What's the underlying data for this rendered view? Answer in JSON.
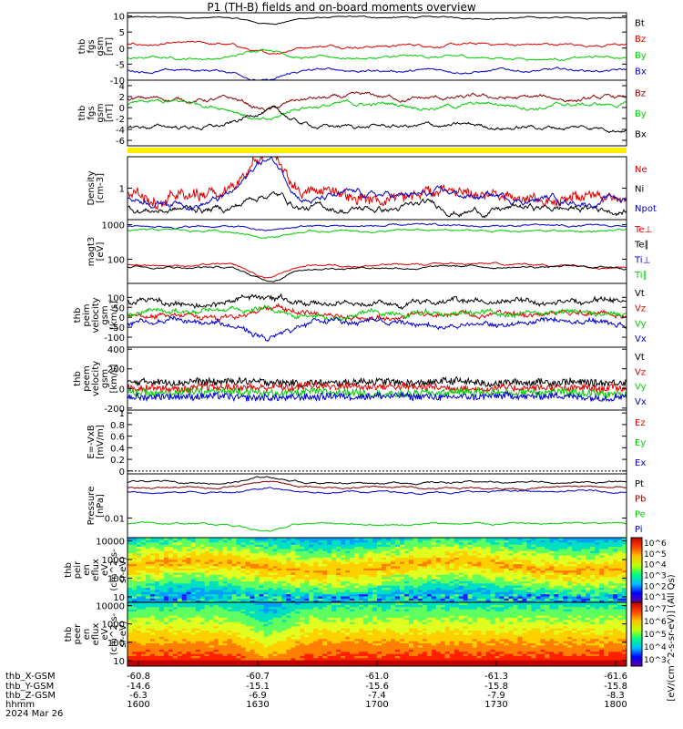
{
  "title": "P1 (TH-B) fields and on-board moments overview",
  "colors": {
    "black": "#000000",
    "red": "#e00000",
    "green": "#00cc00",
    "blue": "#0000cc",
    "darkred": "#8b0000",
    "yellow": "#ffee00"
  },
  "chart_data": [
    {
      "type": "line",
      "panel": "fgs-gsm",
      "ylabel": [
        "thb",
        "fgs",
        "gsm",
        "[nT]"
      ],
      "ylim": [
        -10,
        11
      ],
      "yticks": [
        10,
        5,
        0,
        -5,
        -10
      ],
      "series": [
        {
          "name": "Bt",
          "color": "black",
          "base": 9.5,
          "amp": 0.8
        },
        {
          "name": "Bz",
          "color": "red",
          "base": 1.0,
          "amp": 1.5
        },
        {
          "name": "By",
          "color": "green",
          "base": -3.0,
          "amp": 1.5
        },
        {
          "name": "Bx",
          "color": "blue",
          "base": -7.0,
          "amp": 1.5
        }
      ]
    },
    {
      "type": "line",
      "panel": "fgs-gse",
      "ylabel": [
        "thb",
        "fgs",
        "gsm",
        "[nT]"
      ],
      "ylim": [
        -7,
        5
      ],
      "yticks": [
        4,
        2,
        0,
        -2,
        -4,
        -6
      ],
      "series": [
        {
          "name": "Bz",
          "color": "darkred",
          "base": 1.5,
          "amp": 1.5
        },
        {
          "name": "By",
          "color": "green",
          "base": 0.5,
          "amp": 1.5
        },
        {
          "name": "Bx",
          "color": "black",
          "base": -3.5,
          "amp": 1.5
        }
      ]
    },
    {
      "type": "line",
      "panel": "density",
      "ylabel": [
        "Density",
        "[cm-3]"
      ],
      "yscale": "log",
      "ylim": [
        0.4,
        2.5
      ],
      "yticks": [
        1
      ],
      "series": [
        {
          "name": "Ne",
          "color": "red"
        },
        {
          "name": "Ni",
          "color": "black"
        },
        {
          "name": "Npot",
          "color": "blue"
        }
      ]
    },
    {
      "type": "line",
      "panel": "temperature",
      "ylabel": [
        "magt3",
        "[eV]"
      ],
      "yscale": "log",
      "ylim": [
        20,
        1400
      ],
      "yticks": [
        1000,
        100
      ],
      "series": [
        {
          "name": "Te⊥",
          "color": "red"
        },
        {
          "name": "Te∥",
          "color": "black"
        },
        {
          "name": "Ti⊥",
          "color": "blue"
        },
        {
          "name": "Ti∥",
          "color": "green"
        }
      ]
    },
    {
      "type": "line",
      "panel": "peim-velocity",
      "ylabel": [
        "thb",
        "peim",
        "velocity",
        "gsm",
        "[km/s]"
      ],
      "ylim": [
        -150,
        170
      ],
      "yticks": [
        100,
        50,
        0,
        -50,
        -100
      ],
      "series": [
        {
          "name": "Vt",
          "color": "black"
        },
        {
          "name": "Vz",
          "color": "red"
        },
        {
          "name": "Vy",
          "color": "green"
        },
        {
          "name": "Vx",
          "color": "blue"
        }
      ]
    },
    {
      "type": "line",
      "panel": "peem-velocity",
      "ylabel": [
        "thb",
        "peem",
        "velocity",
        "gsm",
        "[km/s]"
      ],
      "ylim": [
        -220,
        420
      ],
      "yticks": [
        400,
        200,
        0,
        -200
      ],
      "series": [
        {
          "name": "Vt",
          "color": "black"
        },
        {
          "name": "Vz",
          "color": "red"
        },
        {
          "name": "Vy",
          "color": "green"
        },
        {
          "name": "Vx",
          "color": "blue"
        }
      ]
    },
    {
      "type": "line",
      "panel": "efield",
      "ylabel": [
        "E=-VxB",
        "[mV/m]"
      ],
      "ylim": [
        -0.05,
        1.05
      ],
      "yticks": [
        1.0,
        0.8,
        0.6,
        0.4,
        0.2,
        0.0
      ],
      "series": [
        {
          "name": "Ez",
          "color": "red"
        },
        {
          "name": "Ey",
          "color": "green"
        },
        {
          "name": "Ex",
          "color": "blue"
        }
      ]
    },
    {
      "type": "line",
      "panel": "pressure",
      "ylabel": [
        "Pressure",
        "[nPa]"
      ],
      "yscale": "log",
      "ylim": [
        0.003,
        0.15
      ],
      "yticks": [
        0.01
      ],
      "series": [
        {
          "name": "Pt",
          "color": "black"
        },
        {
          "name": "Pb",
          "color": "darkred"
        },
        {
          "name": "Pe",
          "color": "green"
        },
        {
          "name": "Pi",
          "color": "blue"
        }
      ]
    },
    {
      "type": "heatmap",
      "panel": "peir",
      "ylabel": [
        "thb",
        "peir",
        "en",
        "eflux",
        "eV",
        "(cm^2-s-",
        "sr-eV)"
      ],
      "yscale": "log",
      "ylim": [
        5,
        15000
      ],
      "yticks": [
        10000,
        1000,
        100,
        10
      ],
      "colorbar": {
        "label": "[eV/(cm^2-s-sr-eV)] (All Qs)",
        "ticks": [
          "10^1",
          "10^2",
          "10^3",
          "10^4",
          "10^5",
          "10^6"
        ]
      }
    },
    {
      "type": "heatmap",
      "panel": "peer",
      "ylabel": [
        "thb",
        "peer",
        "en",
        "eflux",
        "eV",
        "(cm^2-s-",
        "sr-eV)"
      ],
      "yscale": "log",
      "ylim": [
        5,
        15000
      ],
      "yticks": [
        10000,
        1000,
        100,
        10
      ],
      "colorbar": {
        "label": "[eV/(cm^2-s-sr-eV)] (All Qs)",
        "ticks": [
          "10^3",
          "10^4",
          "10^5",
          "10^6",
          "10^7"
        ]
      }
    }
  ],
  "x_axis": {
    "row_labels": [
      "thb_X-GSM",
      "thb_Y-GSM",
      "thb_Z-GSM",
      "hhmm",
      "2024 Mar 26"
    ],
    "ticks": [
      {
        "x": "-60.8",
        "y": "-14.6",
        "z": "-6.3",
        "hhmm": "1600"
      },
      {
        "x": "-60.7",
        "y": "-15.1",
        "z": "-6.9",
        "hhmm": "1630"
      },
      {
        "x": "-61.0",
        "y": "-15.6",
        "z": "-7.4",
        "hhmm": "1700"
      },
      {
        "x": "-61.3",
        "y": "-15.8",
        "z": "-7.9",
        "hhmm": "1730"
      },
      {
        "x": "-61.6",
        "y": "-15.8",
        "z": "-8.3",
        "hhmm": "1800"
      }
    ]
  }
}
